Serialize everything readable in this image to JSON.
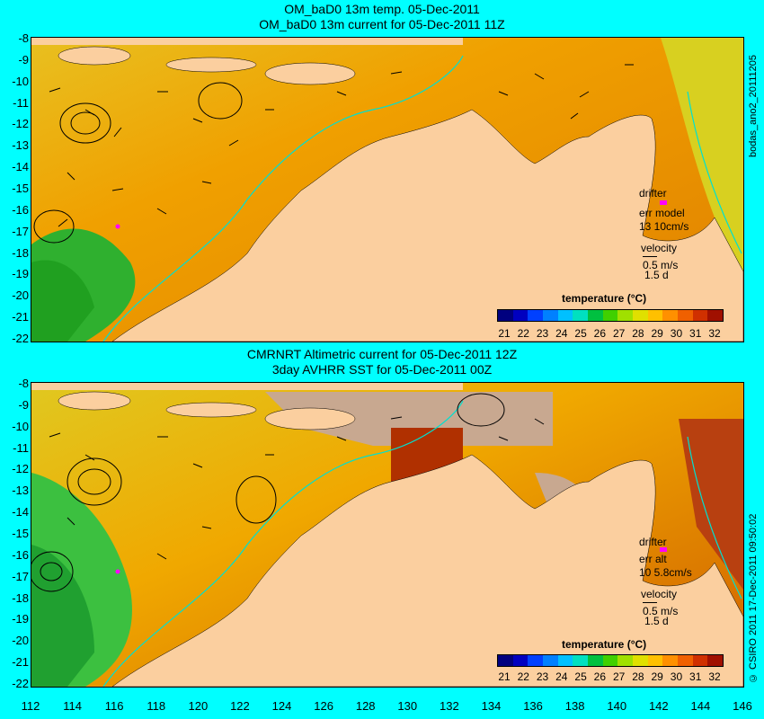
{
  "top": {
    "title_line1": "OM_baD0 13m temp. 05-Dec-2011",
    "title_line2": "OM_baD0 13m current for 05-Dec-2011 11Z",
    "drifter": "drifter",
    "err_label": "err model",
    "err_value": "13 10cm/s",
    "velocity": "velocity",
    "vel_scale": "0.5 m/s",
    "vel_days": "1.5 d",
    "side_text": "bodas_ano2_20111205"
  },
  "bottom": {
    "title_line1": "CMRNRT Altimetric current for 05-Dec-2011 12Z",
    "title_line2": "3day AVHRR SST for 05-Dec-2011 00Z",
    "drifter": "drifter",
    "err_label": "err alt",
    "err_value": "10 5.8cm/s",
    "velocity": "velocity",
    "vel_scale": "0.5 m/s",
    "vel_days": "1.5 d",
    "side_text": "© CSIRO 2011  17-Dec-2011 09:50:02"
  },
  "colorbar": {
    "title": "temperature (°C)",
    "labels": [
      "21",
      "22",
      "23",
      "24",
      "25",
      "26",
      "27",
      "28",
      "29",
      "30",
      "31",
      "32"
    ],
    "colors": [
      "#00007f",
      "#0000c0",
      "#0040ff",
      "#0080ff",
      "#00c0ff",
      "#00e0c0",
      "#00c040",
      "#40d000",
      "#a0e000",
      "#e0e000",
      "#ffc000",
      "#ff9000",
      "#f06000",
      "#d03000",
      "#a01000"
    ]
  },
  "axes": {
    "y_ticks": [
      "-8",
      "-9",
      "-10",
      "-11",
      "-12",
      "-13",
      "-14",
      "-15",
      "-16",
      "-17",
      "-18",
      "-19",
      "-20",
      "-21",
      "-22"
    ],
    "x_ticks": [
      "112",
      "114",
      "116",
      "118",
      "120",
      "122",
      "124",
      "126",
      "128",
      "130",
      "132",
      "134",
      "136",
      "138",
      "140",
      "142",
      "144",
      "146"
    ]
  },
  "colors": {
    "land": "#fbcf9f",
    "background": "#00ffff",
    "sea_warm": "#f0a000",
    "sea_cool": "#30c030",
    "coast_line": "#00e0d0",
    "missing": "#c8a890"
  }
}
